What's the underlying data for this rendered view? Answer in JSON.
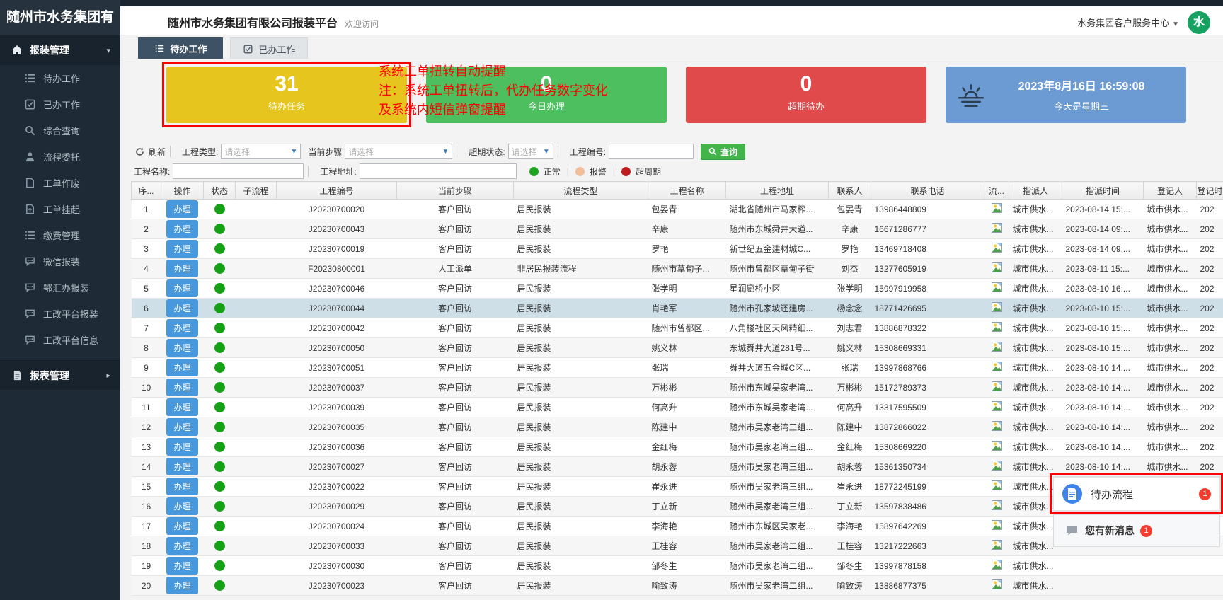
{
  "header": {
    "logo": "随州市水务集团有",
    "title": "随州市水务集团有限公司报装平台",
    "welcome": "欢迎访问",
    "user_center": "水务集团客户服务中心",
    "avatar": "水"
  },
  "sidebar": {
    "group": "报装管理",
    "items": [
      "待办工作",
      "已办工作",
      "综合查询",
      "流程委托",
      "工单作废",
      "工单挂起",
      "缴费管理",
      "微信报装",
      "鄂汇办报装",
      "工改平台报装",
      "工改平台信息"
    ],
    "report_group": "报表管理"
  },
  "tabs": {
    "todo": "待办工作",
    "done": "已办工作"
  },
  "cards": {
    "todo": {
      "value": "31",
      "label": "待办任务",
      "color": "#e5c51e"
    },
    "today": {
      "value": "0",
      "label": "今日办理",
      "color": "#4dbf5e"
    },
    "overdue": {
      "value": "0",
      "label": "超期待办",
      "color": "#e04a4a"
    },
    "date": {
      "line1": "2023年8月16日 16:59:08",
      "line2": "今天是星期三",
      "color": "#6b9bd2"
    }
  },
  "annotation": {
    "line1": "系统工单扭转自动提醒",
    "line2": "注：系统工单扭转后，代办任务数字变化",
    "line3": "及系统内短信弹窗提醒",
    "color": "#ff0000"
  },
  "filters": {
    "refresh": "刷新",
    "type_label": "工程类型:",
    "type_value": "请选择",
    "step_label": "当前步骤",
    "step_value": "请选择",
    "overdue_label": "超期状态:",
    "overdue_value": "请选择",
    "code_label": "工程编号:",
    "code_value": "",
    "search": "查询",
    "name_label": "工程名称:",
    "name_value": "",
    "addr_label": "工程地址:",
    "addr_value": "",
    "legend": [
      {
        "label": "正常",
        "color": "#1ea51e"
      },
      {
        "label": "报警",
        "color": "#f2bd99"
      },
      {
        "label": "超周期",
        "color": "#bf1d1d"
      }
    ]
  },
  "table": {
    "headers": [
      "序...",
      "操作",
      "状态",
      "子流程",
      "工程编号",
      "当前步骤",
      "流程类型",
      "工程名称",
      "工程地址",
      "联系人",
      "联系电话",
      "流...",
      "指派人",
      "指派时间",
      "登记人",
      "登记时"
    ],
    "action_label": "办理",
    "rows": [
      {
        "n": "1",
        "code": "J20230700020",
        "step": "客户回访",
        "type": "居民报装",
        "name": "包晏青",
        "addr": "湖北省随州市马家榨...",
        "contact": "包晏青",
        "phone": "13986448809",
        "assignee": "城市供水...",
        "assign_time": "2023-08-14 15:...",
        "registrar": "城市供水...",
        "reg_time": "202",
        "highlight": false
      },
      {
        "n": "2",
        "code": "J20230700043",
        "step": "客户回访",
        "type": "居民报装",
        "name": "辛康",
        "addr": "随州市东城舜井大道...",
        "contact": "辛康",
        "phone": "16671286777",
        "assignee": "城市供水...",
        "assign_time": "2023-08-14 09:...",
        "registrar": "城市供水...",
        "reg_time": "202",
        "highlight": false
      },
      {
        "n": "3",
        "code": "J20230700019",
        "step": "客户回访",
        "type": "居民报装",
        "name": "罗艳",
        "addr": "新世纪五金建材城C...",
        "contact": "罗艳",
        "phone": "13469718408",
        "assignee": "城市供水...",
        "assign_time": "2023-08-14 09:...",
        "registrar": "城市供水...",
        "reg_time": "202",
        "highlight": false
      },
      {
        "n": "4",
        "code": "F20230800001",
        "step": "人工派单",
        "type": "非居民报装流程",
        "name": "随州市草甸子...",
        "addr": "随州市曾都区草甸子街",
        "contact": "刘杰",
        "phone": "13277605919",
        "assignee": "城市供水...",
        "assign_time": "2023-08-11 15:...",
        "registrar": "城市供水...",
        "reg_time": "202",
        "highlight": false
      },
      {
        "n": "5",
        "code": "J20230700046",
        "step": "客户回访",
        "type": "居民报装",
        "name": "张学明",
        "addr": "星润廊桥小区",
        "contact": "张学明",
        "phone": "15997919958",
        "assignee": "城市供水...",
        "assign_time": "2023-08-10 16:...",
        "registrar": "城市供水...",
        "reg_time": "202",
        "highlight": false
      },
      {
        "n": "6",
        "code": "J20230700044",
        "step": "客户回访",
        "type": "居民报装",
        "name": "肖艳军",
        "addr": "随州市孔家坡还建房...",
        "contact": "杨念念",
        "phone": "18771426695",
        "assignee": "城市供水...",
        "assign_time": "2023-08-10 15:...",
        "registrar": "城市供水...",
        "reg_time": "202",
        "highlight": true
      },
      {
        "n": "7",
        "code": "J20230700042",
        "step": "客户回访",
        "type": "居民报装",
        "name": "随州市曾都区...",
        "addr": "八角楼社区天风精细...",
        "contact": "刘志君",
        "phone": "13886878322",
        "assignee": "城市供水...",
        "assign_time": "2023-08-10 15:...",
        "registrar": "城市供水...",
        "reg_time": "202",
        "highlight": false
      },
      {
        "n": "8",
        "code": "J20230700050",
        "step": "客户回访",
        "type": "居民报装",
        "name": "姚义林",
        "addr": "东城舜井大道281号...",
        "contact": "姚义林",
        "phone": "15308669331",
        "assignee": "城市供水...",
        "assign_time": "2023-08-10 15:...",
        "registrar": "城市供水...",
        "reg_time": "202",
        "highlight": false
      },
      {
        "n": "9",
        "code": "J20230700051",
        "step": "客户回访",
        "type": "居民报装",
        "name": "张瑞",
        "addr": "舜井大道五金城C区...",
        "contact": "张瑞",
        "phone": "13997868766",
        "assignee": "城市供水...",
        "assign_time": "2023-08-10 14:...",
        "registrar": "城市供水...",
        "reg_time": "202",
        "highlight": false
      },
      {
        "n": "10",
        "code": "J20230700037",
        "step": "客户回访",
        "type": "居民报装",
        "name": "万彬彬",
        "addr": "随州市东城吴家老湾...",
        "contact": "万彬彬",
        "phone": "15172789373",
        "assignee": "城市供水...",
        "assign_time": "2023-08-10 14:...",
        "registrar": "城市供水...",
        "reg_time": "202",
        "highlight": false
      },
      {
        "n": "11",
        "code": "J20230700039",
        "step": "客户回访",
        "type": "居民报装",
        "name": "何高升",
        "addr": "随州市东城吴家老湾...",
        "contact": "何高升",
        "phone": "13317595509",
        "assignee": "城市供水...",
        "assign_time": "2023-08-10 14:...",
        "registrar": "城市供水...",
        "reg_time": "202",
        "highlight": false
      },
      {
        "n": "12",
        "code": "J20230700035",
        "step": "客户回访",
        "type": "居民报装",
        "name": "陈建中",
        "addr": "随州市吴家老湾三组...",
        "contact": "陈建中",
        "phone": "13872866022",
        "assignee": "城市供水...",
        "assign_time": "2023-08-10 14:...",
        "registrar": "城市供水...",
        "reg_time": "202",
        "highlight": false
      },
      {
        "n": "13",
        "code": "J20230700036",
        "step": "客户回访",
        "type": "居民报装",
        "name": "金红梅",
        "addr": "随州市吴家老湾三组...",
        "contact": "金红梅",
        "phone": "15308669220",
        "assignee": "城市供水...",
        "assign_time": "2023-08-10 14:...",
        "registrar": "城市供水...",
        "reg_time": "202",
        "highlight": false
      },
      {
        "n": "14",
        "code": "J20230700027",
        "step": "客户回访",
        "type": "居民报装",
        "name": "胡永蓉",
        "addr": "随州市吴家老湾三组...",
        "contact": "胡永蓉",
        "phone": "15361350734",
        "assignee": "城市供水...",
        "assign_time": "2023-08-10 14:...",
        "registrar": "城市供水...",
        "reg_time": "202",
        "highlight": false
      },
      {
        "n": "15",
        "code": "J20230700022",
        "step": "客户回访",
        "type": "居民报装",
        "name": "崔永进",
        "addr": "随州市吴家老湾三组...",
        "contact": "崔永进",
        "phone": "18772245199",
        "assignee": "城市供水...",
        "assign_time": "2023-08-10 14:...",
        "registrar": "城市供水...",
        "reg_time": "202",
        "highlight": false
      },
      {
        "n": "16",
        "code": "J20230700029",
        "step": "客户回访",
        "type": "居民报装",
        "name": "丁立新",
        "addr": "随州市吴家老湾三组...",
        "contact": "丁立新",
        "phone": "13597838486",
        "assignee": "城市供水...",
        "assign_time": "2023-08-10 14:...",
        "registrar": "城市供水...",
        "reg_time": "202",
        "highlight": false
      },
      {
        "n": "17",
        "code": "J20230700024",
        "step": "客户回访",
        "type": "居民报装",
        "name": "李海艳",
        "addr": "随州市东城区吴家老...",
        "contact": "李海艳",
        "phone": "15897642269",
        "assignee": "城市供水...",
        "assign_time": "",
        "registrar": "",
        "reg_time": "",
        "highlight": false
      },
      {
        "n": "18",
        "code": "J20230700033",
        "step": "客户回访",
        "type": "居民报装",
        "name": "王桂容",
        "addr": "随州市吴家老湾二组...",
        "contact": "王桂容",
        "phone": "13217222663",
        "assignee": "城市供水...",
        "assign_time": "",
        "registrar": "",
        "reg_time": "",
        "highlight": false
      },
      {
        "n": "19",
        "code": "J20230700030",
        "step": "客户回访",
        "type": "居民报装",
        "name": "邹冬生",
        "addr": "随州市吴家老湾二组...",
        "contact": "邹冬生",
        "phone": "13997878158",
        "assignee": "城市供水...",
        "assign_time": "",
        "registrar": "",
        "reg_time": "",
        "highlight": false
      },
      {
        "n": "20",
        "code": "J20230700023",
        "step": "客户回访",
        "type": "居民报装",
        "name": "喻致涛",
        "addr": "随州市吴家老湾二组...",
        "contact": "喻致涛",
        "phone": "13886877375",
        "assignee": "城市供水...",
        "assign_time": "",
        "registrar": "",
        "reg_time": "",
        "highlight": false
      }
    ]
  },
  "popups": {
    "flow": {
      "label": "待办流程",
      "badge": "1"
    },
    "message": {
      "label": "您有新消息",
      "badge": "1"
    }
  }
}
